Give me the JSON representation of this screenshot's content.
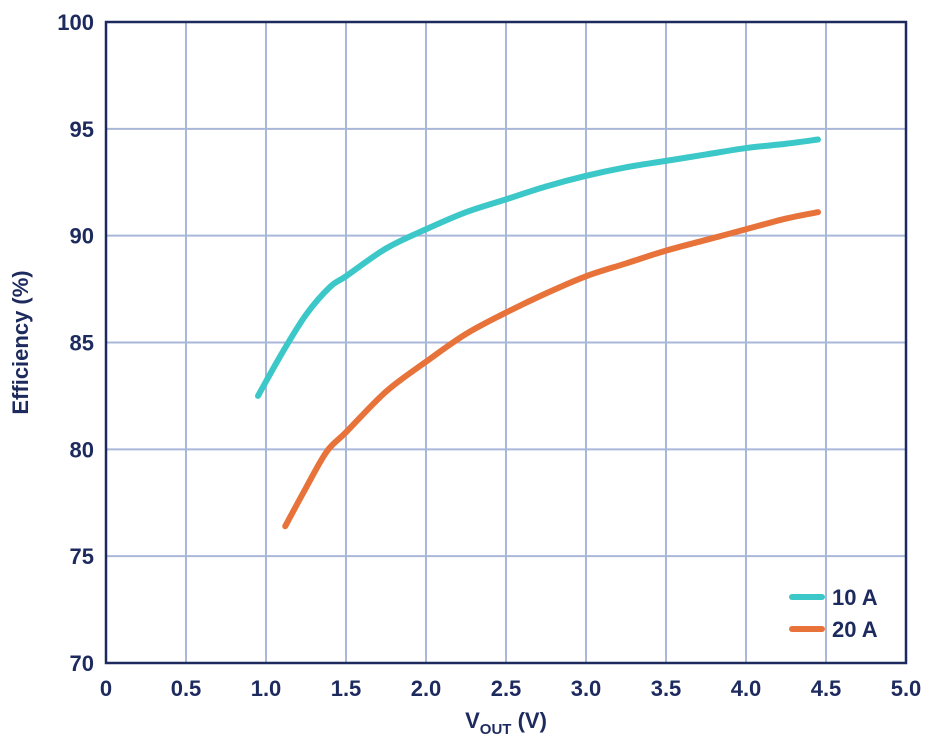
{
  "chart_data": {
    "type": "line",
    "title": "",
    "xlabel": {
      "main": "V",
      "sub": "OUT",
      "unit": " (V)"
    },
    "ylabel": "Efficiency (%)",
    "xlim": [
      0,
      5
    ],
    "ylim": [
      70,
      100
    ],
    "x_ticks": [
      "0",
      "0.5",
      "1.0",
      "1.5",
      "2.0",
      "2.5",
      "3.0",
      "3.5",
      "4.0",
      "4.5",
      "5.0"
    ],
    "y_ticks": [
      "70",
      "75",
      "80",
      "85",
      "90",
      "95",
      "100"
    ],
    "grid": true,
    "legend_position": "bottom-right",
    "series": [
      {
        "name": "10 A",
        "color": "#3cc8c8",
        "points": [
          [
            0.95,
            82.5
          ],
          [
            1.1,
            84.5
          ],
          [
            1.25,
            86.3
          ],
          [
            1.4,
            87.6
          ],
          [
            1.5,
            88.1
          ],
          [
            1.75,
            89.4
          ],
          [
            2.0,
            90.3
          ],
          [
            2.25,
            91.1
          ],
          [
            2.5,
            91.7
          ],
          [
            2.75,
            92.3
          ],
          [
            3.0,
            92.8
          ],
          [
            3.25,
            93.2
          ],
          [
            3.5,
            93.5
          ],
          [
            3.75,
            93.8
          ],
          [
            4.0,
            94.1
          ],
          [
            4.25,
            94.3
          ],
          [
            4.45,
            94.5
          ]
        ]
      },
      {
        "name": "20 A",
        "color": "#e8733a",
        "points": [
          [
            1.12,
            76.4
          ],
          [
            1.25,
            78.2
          ],
          [
            1.38,
            79.9
          ],
          [
            1.5,
            80.8
          ],
          [
            1.75,
            82.7
          ],
          [
            2.0,
            84.1
          ],
          [
            2.25,
            85.4
          ],
          [
            2.5,
            86.4
          ],
          [
            2.75,
            87.3
          ],
          [
            3.0,
            88.1
          ],
          [
            3.25,
            88.7
          ],
          [
            3.5,
            89.3
          ],
          [
            3.75,
            89.8
          ],
          [
            4.0,
            90.3
          ],
          [
            4.25,
            90.8
          ],
          [
            4.45,
            91.1
          ]
        ]
      }
    ]
  }
}
